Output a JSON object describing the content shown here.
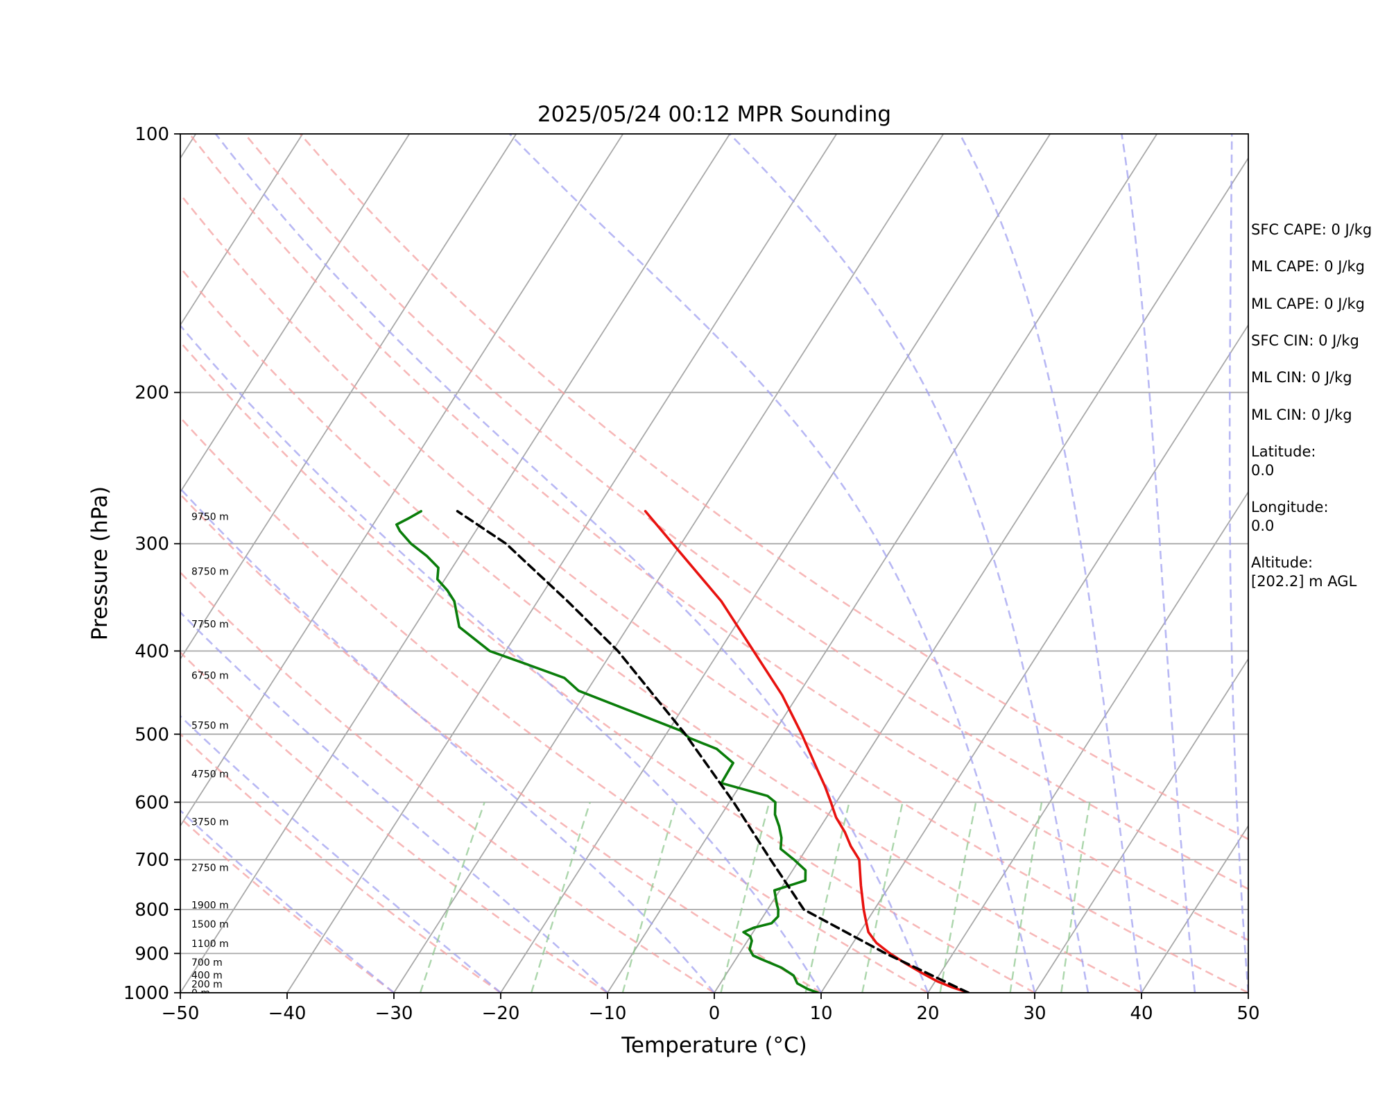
{
  "chart_data": {
    "type": "skew-t log-p",
    "title": "2025/05/24 00:12 MPR Sounding",
    "xlabel": "Temperature (°C)",
    "ylabel": "Pressure (hPa)",
    "xlim": [
      -50,
      50
    ],
    "ylim": [
      1000,
      100
    ],
    "y_scale": "log",
    "grid": true,
    "x_ticks": [
      -50,
      -40,
      -30,
      -20,
      -10,
      0,
      10,
      20,
      30,
      40,
      50
    ],
    "y_ticks": [
      1000,
      900,
      800,
      700,
      600,
      500,
      400,
      300,
      200,
      100
    ],
    "series": [
      {
        "name": "",
        "kind": "temperature",
        "color": "#e8120f",
        "style": "solid",
        "pressure": [
          1000,
          985,
          970,
          950,
          925,
          900,
          875,
          850,
          825,
          800,
          750,
          700,
          675,
          650,
          625,
          600,
          575,
          550,
          500,
          450,
          400,
          350,
          300,
          275
        ],
        "temperature": [
          23.8,
          21.9,
          20.2,
          18.4,
          16.2,
          14.1,
          12.2,
          10.8,
          9.9,
          9.0,
          7.3,
          5.6,
          4.0,
          2.6,
          0.9,
          -0.5,
          -2.0,
          -3.7,
          -7.3,
          -11.5,
          -16.8,
          -22.8,
          -30.8,
          -35.3
        ]
      },
      {
        "name": "",
        "kind": "dewpoint",
        "color": "#0a7d0a",
        "style": "solid",
        "pressure": [
          1000,
          990,
          975,
          955,
          935,
          915,
          905,
          890,
          870,
          860,
          850,
          840,
          830,
          815,
          800,
          790,
          760,
          740,
          720,
          700,
          680,
          660,
          640,
          620,
          600,
          590,
          570,
          540,
          520,
          505,
          495,
          445,
          430,
          415,
          400,
          375,
          350,
          340,
          330,
          320,
          310,
          300,
          290,
          285,
          280,
          275
        ],
        "dewpoint": [
          9.7,
          8.5,
          7.2,
          6.4,
          4.8,
          2.5,
          1.4,
          0.7,
          0.4,
          0.0,
          -0.9,
          -0.2,
          1.2,
          1.4,
          1.0,
          0.6,
          -0.5,
          1.8,
          1.2,
          -0.5,
          -2.4,
          -3.0,
          -3.9,
          -5.0,
          -5.7,
          -6.8,
          -11.9,
          -12.0,
          -14.4,
          -17.6,
          -18.9,
          -30.8,
          -32.9,
          -37.1,
          -41.5,
          -45.8,
          -47.8,
          -49.1,
          -50.7,
          -51.3,
          -53.1,
          -55.3,
          -57.1,
          -57.8,
          -57.0,
          -56.3
        ]
      },
      {
        "name": "",
        "kind": "parcel",
        "color": "#000000",
        "style": "dashed",
        "pressure": [
          1000,
          900,
          800,
          700,
          600,
          500,
          400,
          350,
          300,
          275
        ],
        "temperature": [
          23.8,
          13.7,
          3.4,
          -2.7,
          -9.6,
          -18.2,
          -29.5,
          -37.2,
          -46.4,
          -52.9
        ]
      }
    ],
    "background_lines": [
      {
        "kind": "isotherms",
        "color": "#808080",
        "style": "solid",
        "values": [
          -130,
          -120,
          -110,
          -100,
          -90,
          -80,
          -70,
          -60,
          -50,
          -40,
          -30,
          -20,
          -10,
          0,
          10,
          20,
          30,
          40,
          50
        ]
      },
      {
        "kind": "dry adiabats",
        "color": "#f4a0a0",
        "style": "dashed",
        "values": [
          -30,
          -20,
          -10,
          0,
          10,
          20,
          30,
          40,
          50,
          60,
          70,
          80
        ]
      },
      {
        "kind": "moist adiabats",
        "color": "#a0a0f0",
        "style": "dashed",
        "values": [
          -30,
          -20,
          -10,
          0,
          10,
          20,
          30,
          35,
          40,
          45,
          50
        ]
      },
      {
        "kind": "mixing ratio lines",
        "color": "#90c890",
        "style": "dashed",
        "values": [
          0.4,
          1,
          2,
          4,
          7,
          10,
          16,
          24,
          32
        ]
      }
    ],
    "height_labels": [
      "0 m",
      "200 m",
      "400 m",
      "700 m",
      "1100 m",
      "1500 m",
      "1900 m",
      "2750 m",
      "3750 m",
      "4750 m",
      "5750 m",
      "6750 m",
      "7750 m",
      "8750 m",
      "9750 m"
    ],
    "height_label_pressures": [
      1000,
      977,
      954,
      921,
      876,
      832,
      790,
      715,
      632,
      556,
      488,
      427,
      372,
      323,
      279
    ]
  },
  "side_panel": {
    "sfc_cape": "SFC CAPE: 0 J/kg",
    "ml_cape_1": "ML CAPE: 0 J/kg",
    "ml_cape_2": "ML CAPE: 0 J/kg",
    "sfc_cin": "SFC CIN: 0 J/kg",
    "ml_cin_1": "ML CIN: 0 J/kg",
    "ml_cin_2": "ML CIN: 0 J/kg",
    "latitude": "Latitude:\n0.0",
    "longitude": "Longitude:\n0.0",
    "altitude": "Altitude:\n[202.2] m AGL"
  }
}
